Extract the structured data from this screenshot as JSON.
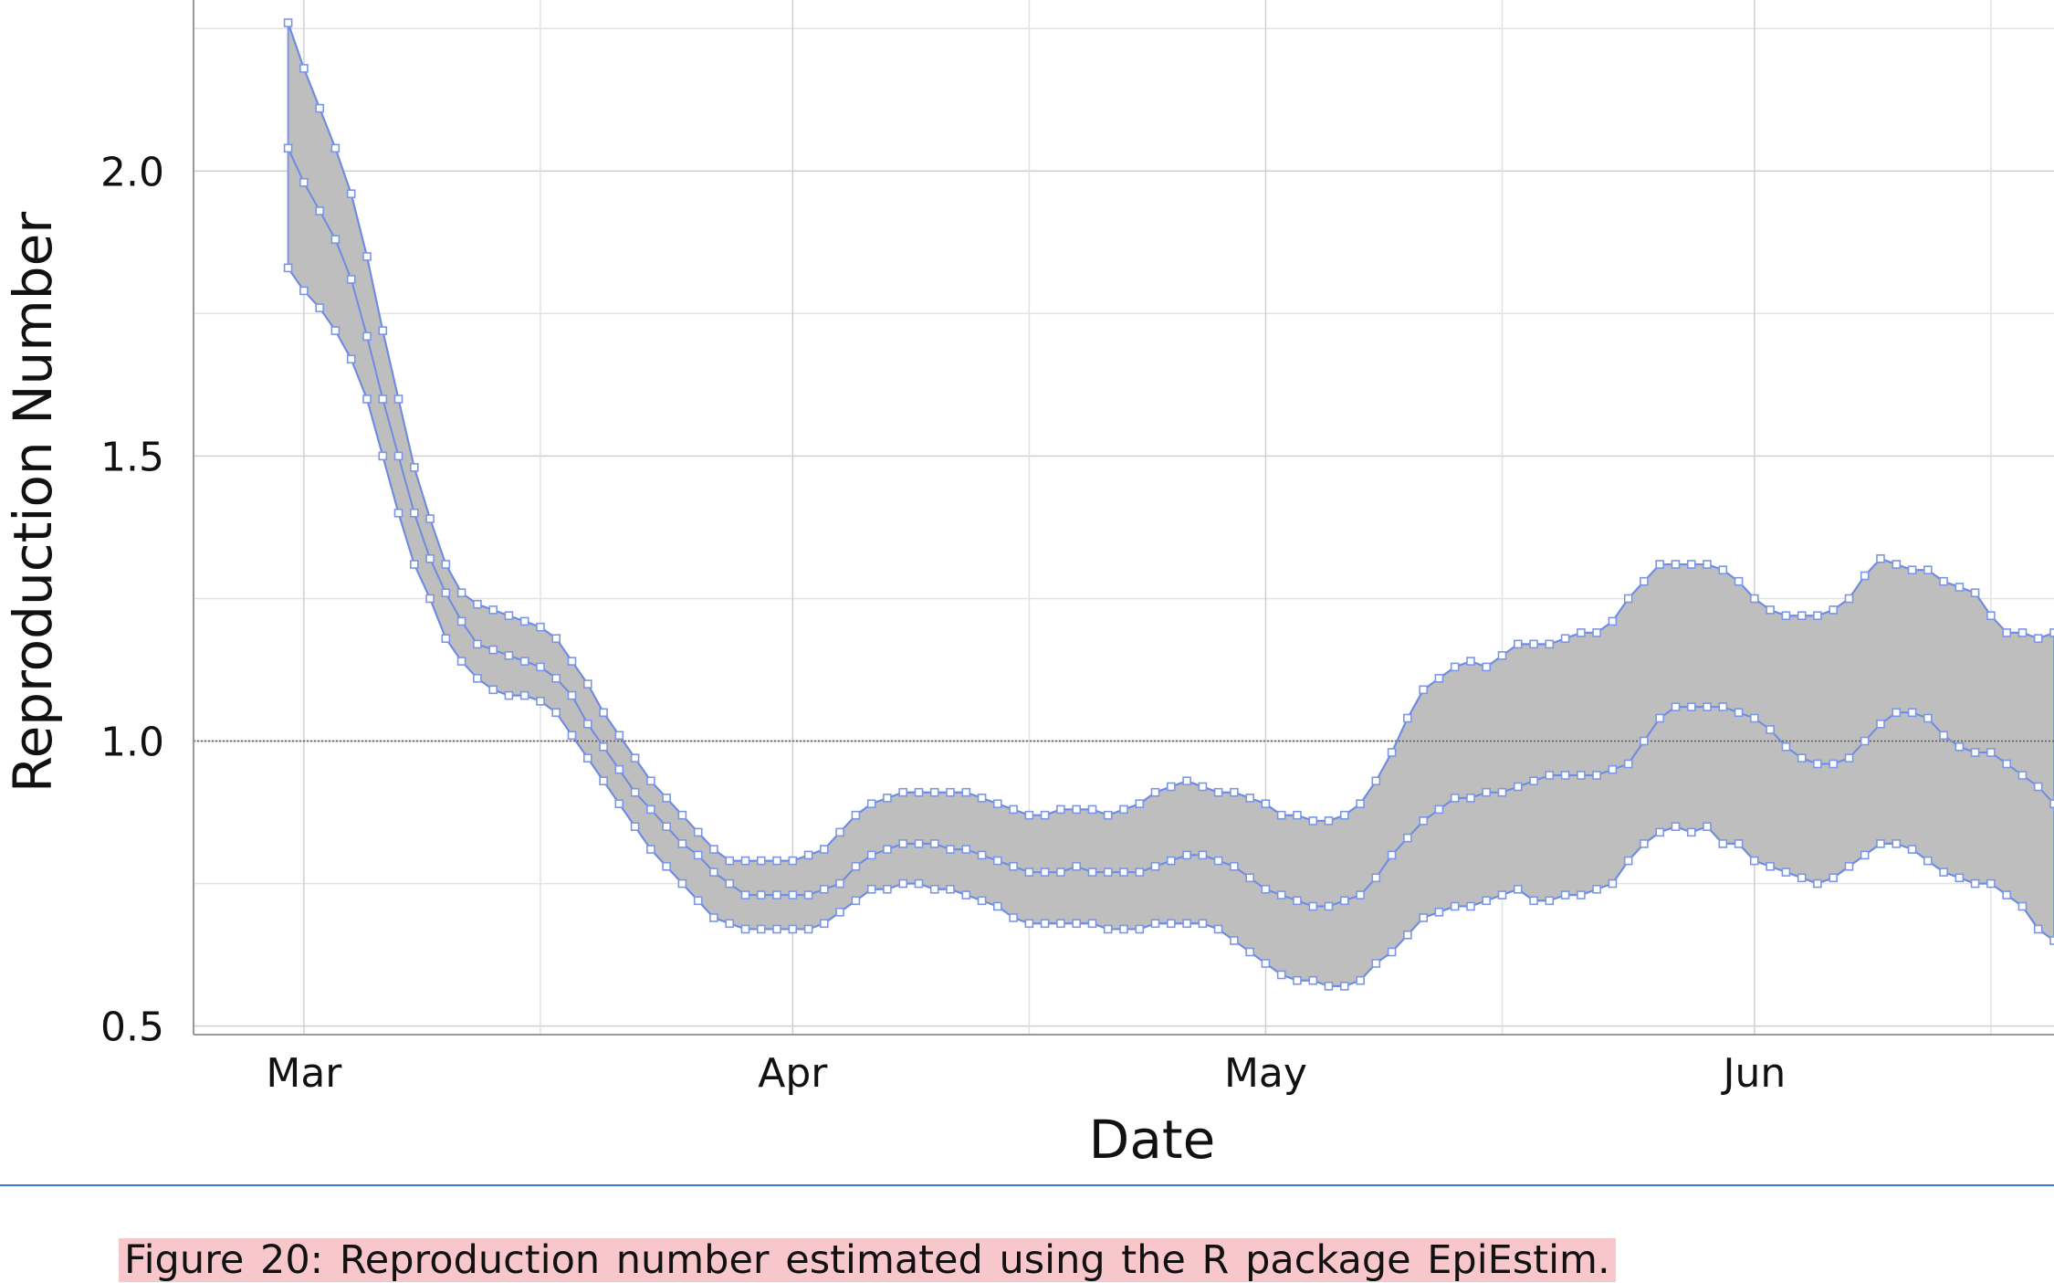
{
  "caption": "Figure 20: Reproduction number estimated using the R package EpiEstim.",
  "chart_data": {
    "type": "area",
    "title": "",
    "xlabel": "Date",
    "ylabel": "Reproduction Number",
    "x_start": "2020-02-29",
    "x_tick_labels": [
      {
        "label": "Mar",
        "date": "2020-03-01"
      },
      {
        "label": "Apr",
        "date": "2020-04-01"
      },
      {
        "label": "May",
        "date": "2020-05-01"
      },
      {
        "label": "Jun",
        "date": "2020-06-01"
      }
    ],
    "minor_gridline_dates": [
      "2020-03-16",
      "2020-04-16",
      "2020-05-16",
      "2020-06-16"
    ],
    "xlim": [
      "2020-02-23",
      "2020-06-20"
    ],
    "ylim": [
      0.485,
      2.3
    ],
    "y_ticks": [
      0.5,
      1.0,
      1.5,
      2.0
    ],
    "y_tick_labels": [
      "0.5",
      "1.0",
      "1.5",
      "2.0"
    ],
    "reference_line_y": 1.0,
    "grid": true,
    "legend": "none",
    "colors": {
      "band": "#bebebe",
      "line": "#6f8be0",
      "marker": "#7b96e6",
      "reference": "#555555"
    },
    "series": [
      {
        "values": [
          2.04,
          1.98,
          1.93,
          1.88,
          1.81,
          1.71,
          1.6,
          1.5,
          1.4,
          1.32,
          1.26,
          1.21,
          1.17,
          1.16,
          1.15,
          1.14,
          1.13,
          1.11,
          1.08,
          1.03,
          0.99,
          0.95,
          0.91,
          0.88,
          0.85,
          0.82,
          0.8,
          0.77,
          0.75,
          0.73,
          0.73,
          0.73,
          0.73,
          0.73,
          0.74,
          0.75,
          0.78,
          0.8,
          0.81,
          0.82,
          0.82,
          0.82,
          0.81,
          0.81,
          0.8,
          0.79,
          0.78,
          0.77,
          0.77,
          0.77,
          0.78,
          0.77,
          0.77,
          0.77,
          0.77,
          0.78,
          0.79,
          0.8,
          0.8,
          0.79,
          0.78,
          0.76,
          0.74,
          0.73,
          0.72,
          0.71,
          0.71,
          0.72,
          0.73,
          0.76,
          0.8,
          0.83,
          0.86,
          0.88,
          0.9,
          0.9,
          0.91,
          0.91,
          0.92,
          0.93,
          0.94,
          0.94,
          0.94,
          0.94,
          0.95,
          0.96,
          1.0,
          1.04,
          1.06,
          1.06,
          1.06,
          1.06,
          1.05,
          1.04,
          1.02,
          0.99,
          0.97,
          0.96,
          0.96,
          0.97,
          1.0,
          1.03,
          1.05,
          1.05,
          1.04,
          1.01,
          0.99,
          0.98,
          0.98,
          0.96,
          0.94,
          0.92,
          0.89
        ]
      },
      {
        "values": [
          2.26,
          2.18,
          2.11,
          2.04,
          1.96,
          1.85,
          1.72,
          1.6,
          1.48,
          1.39,
          1.31,
          1.26,
          1.24,
          1.23,
          1.22,
          1.21,
          1.2,
          1.18,
          1.14,
          1.1,
          1.05,
          1.01,
          0.97,
          0.93,
          0.9,
          0.87,
          0.84,
          0.81,
          0.79,
          0.79,
          0.79,
          0.79,
          0.79,
          0.8,
          0.81,
          0.84,
          0.87,
          0.89,
          0.9,
          0.91,
          0.91,
          0.91,
          0.91,
          0.91,
          0.9,
          0.89,
          0.88,
          0.87,
          0.87,
          0.88,
          0.88,
          0.88,
          0.87,
          0.88,
          0.89,
          0.91,
          0.92,
          0.93,
          0.92,
          0.91,
          0.91,
          0.9,
          0.89,
          0.87,
          0.87,
          0.86,
          0.86,
          0.87,
          0.89,
          0.93,
          0.98,
          1.04,
          1.09,
          1.11,
          1.13,
          1.14,
          1.13,
          1.15,
          1.17,
          1.17,
          1.17,
          1.18,
          1.19,
          1.19,
          1.21,
          1.25,
          1.28,
          1.31,
          1.31,
          1.31,
          1.31,
          1.3,
          1.28,
          1.25,
          1.23,
          1.22,
          1.22,
          1.22,
          1.23,
          1.25,
          1.29,
          1.32,
          1.31,
          1.3,
          1.3,
          1.28,
          1.27,
          1.26,
          1.22,
          1.19,
          1.19,
          1.18,
          1.19
        ]
      },
      {
        "values": [
          1.83,
          1.79,
          1.76,
          1.72,
          1.67,
          1.6,
          1.5,
          1.4,
          1.31,
          1.25,
          1.18,
          1.14,
          1.11,
          1.09,
          1.08,
          1.08,
          1.07,
          1.05,
          1.01,
          0.97,
          0.93,
          0.89,
          0.85,
          0.81,
          0.78,
          0.75,
          0.72,
          0.69,
          0.68,
          0.67,
          0.67,
          0.67,
          0.67,
          0.67,
          0.68,
          0.7,
          0.72,
          0.74,
          0.74,
          0.75,
          0.75,
          0.74,
          0.74,
          0.73,
          0.72,
          0.71,
          0.69,
          0.68,
          0.68,
          0.68,
          0.68,
          0.68,
          0.67,
          0.67,
          0.67,
          0.68,
          0.68,
          0.68,
          0.68,
          0.67,
          0.65,
          0.63,
          0.61,
          0.59,
          0.58,
          0.58,
          0.57,
          0.57,
          0.58,
          0.61,
          0.63,
          0.66,
          0.69,
          0.7,
          0.71,
          0.71,
          0.72,
          0.73,
          0.74,
          0.72,
          0.72,
          0.73,
          0.73,
          0.74,
          0.75,
          0.79,
          0.82,
          0.84,
          0.85,
          0.84,
          0.85,
          0.82,
          0.82,
          0.79,
          0.78,
          0.77,
          0.76,
          0.75,
          0.76,
          0.78,
          0.8,
          0.82,
          0.82,
          0.81,
          0.79,
          0.77,
          0.76,
          0.75,
          0.75,
          0.73,
          0.71,
          0.67,
          0.65
        ]
      }
    ]
  }
}
